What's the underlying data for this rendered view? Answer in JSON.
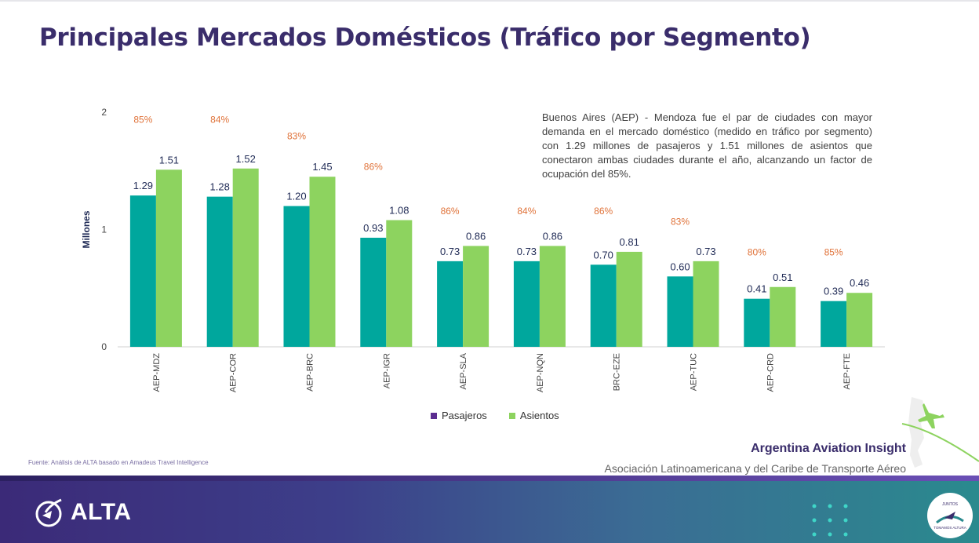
{
  "title": "Principales Mercados Domésticos (Tráfico por Segmento)",
  "note": "Buenos Aires (AEP) - Mendoza fue el par de ciudades con mayor demanda en el mercado doméstico (medido en tráfico por segmento) con 1.29 millones de pasajeros y 1.51 millones de asientos que conectaron ambas ciudades durante el año, alcanzando un factor de ocupación del 85%.",
  "source": "Fuente: Análisis de ALTA basado en Amadeus Travel Intelligence",
  "brand": {
    "title": "Argentina Aviation Insight",
    "subtitle": "Asociación Latinoamericana y del Caribe de Transporte Aéreo"
  },
  "footer": {
    "logo_text": "ALTA",
    "badge_top": "JUNTOS",
    "badge_bottom": "TOMAMOS ALTURA"
  },
  "colors": {
    "pasajeros_bar": "#00a79d",
    "pasajeros_legend": "#5b2d90",
    "asientos": "#8dd35f",
    "load_factor": "#e0733a",
    "title": "#3a2d6b"
  },
  "chart_data": {
    "type": "bar",
    "ylabel": "Millones",
    "ylim": [
      0,
      2
    ],
    "yticks": [
      0,
      1,
      2
    ],
    "categories": [
      "AEP-MDZ",
      "AEP-COR",
      "AEP-BRC",
      "AEP-IGR",
      "AEP-SLA",
      "AEP-NQN",
      "BRC-EZE",
      "AEP-TUC",
      "AEP-CRD",
      "AEP-FTE"
    ],
    "series": [
      {
        "name": "Pasajeros",
        "values": [
          1.29,
          1.28,
          1.2,
          0.93,
          0.73,
          0.73,
          0.7,
          0.6,
          0.41,
          0.39
        ],
        "labels": [
          "1.29",
          "1.28",
          "1.20",
          "0.93",
          "0.73",
          "0.73",
          "0.70",
          "0.60",
          "0.41",
          "0.39"
        ]
      },
      {
        "name": "Asientos",
        "values": [
          1.51,
          1.52,
          1.45,
          1.08,
          0.86,
          0.86,
          0.81,
          0.73,
          0.51,
          0.46
        ],
        "labels": [
          "1.51",
          "1.52",
          "1.45",
          "1.08",
          "0.86",
          "0.86",
          "0.81",
          "0.73",
          "0.51",
          "0.46"
        ]
      }
    ],
    "load_factor": [
      "85%",
      "84%",
      "83%",
      "86%",
      "86%",
      "84%",
      "86%",
      "83%",
      "80%",
      "85%"
    ],
    "load_factor_values": [
      1.91,
      1.91,
      1.77,
      1.51,
      1.13,
      1.13,
      1.13,
      1.04,
      0.78,
      0.78
    ],
    "legend": [
      "Pasajeros",
      "Asientos"
    ],
    "legend_position": "bottom",
    "grid": false
  }
}
